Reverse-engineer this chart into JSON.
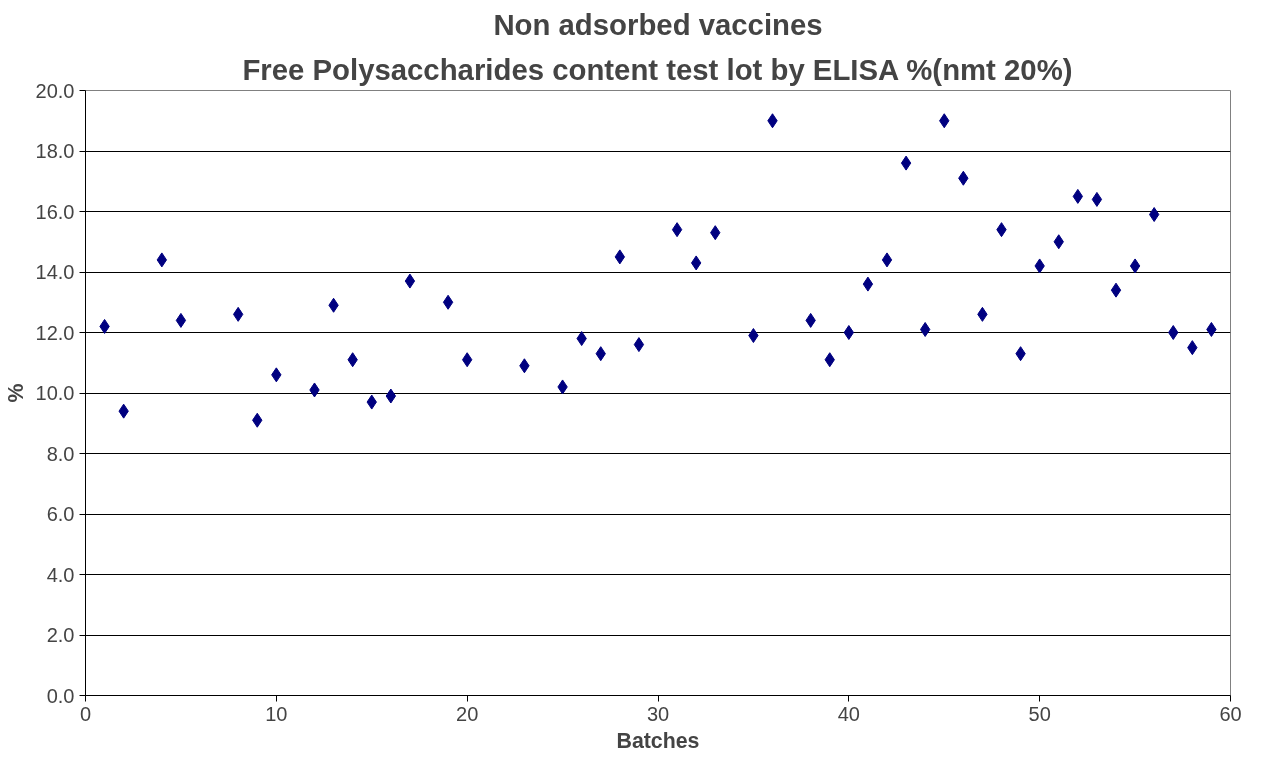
{
  "chart_data": {
    "type": "scatter",
    "title": "Non adsorbed vaccines",
    "subtitle": "Free Polysaccharides content test lot by ELISA %(nmt 20%)",
    "xlabel": "Batches",
    "ylabel": "%",
    "x": [
      1,
      2,
      4,
      5,
      8,
      9,
      10,
      12,
      13,
      14,
      15,
      16,
      17,
      19,
      20,
      23,
      25,
      26,
      27,
      28,
      29,
      31,
      32,
      33,
      35,
      36,
      38,
      39,
      40,
      41,
      42,
      43,
      44,
      45,
      46,
      47,
      48,
      49,
      50,
      51,
      52,
      53,
      54,
      55,
      56,
      57,
      58,
      59
    ],
    "series": [
      {
        "color": "#000080",
        "values": [
          12.2,
          9.4,
          14.4,
          12.4,
          12.6,
          9.1,
          10.6,
          10.1,
          12.9,
          11.1,
          9.7,
          9.9,
          13.7,
          13.0,
          11.1,
          10.9,
          10.2,
          11.8,
          11.3,
          14.5,
          11.6,
          15.4,
          14.3,
          15.3,
          11.9,
          19.0,
          12.4,
          11.1,
          12.0,
          13.6,
          14.4,
          17.6,
          12.1,
          19.0,
          17.1,
          12.6,
          15.4,
          11.3,
          14.2,
          15.0,
          16.5,
          16.4,
          13.4,
          14.2,
          15.9,
          12.0,
          11.5,
          12.1
        ]
      }
    ],
    "xlim": [
      0,
      60
    ],
    "xticks": [
      0,
      10,
      20,
      30,
      40,
      50,
      60
    ],
    "ylim": [
      0,
      20
    ],
    "yticks": [
      {
        "value": 0,
        "label": "0.0"
      },
      {
        "value": 2,
        "label": "2.0"
      },
      {
        "value": 4,
        "label": "4.0"
      },
      {
        "value": 6,
        "label": "6.0"
      },
      {
        "value": 8,
        "label": "8.0"
      },
      {
        "value": 10,
        "label": "10.0"
      },
      {
        "value": 12,
        "label": "12.0"
      },
      {
        "value": 14,
        "label": "14.0"
      },
      {
        "value": 16,
        "label": "16.0"
      },
      {
        "value": 18,
        "label": "18.0"
      },
      {
        "value": 20,
        "label": "20.0"
      }
    ],
    "grid": "y",
    "marker": "diamond"
  }
}
